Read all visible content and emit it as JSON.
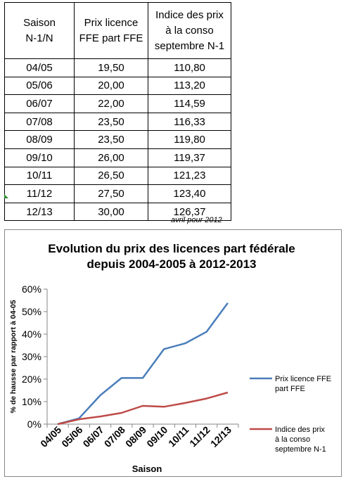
{
  "table": {
    "headers": [
      [
        "Saison",
        "N-1/N"
      ],
      [
        "Prix licence",
        "FFE part FFE"
      ],
      [
        "Indice des prix",
        "à la conso",
        "septembre N-1"
      ]
    ],
    "rows": [
      [
        "04/05",
        "19,50",
        "110,80"
      ],
      [
        "05/06",
        "20,00",
        "113,20"
      ],
      [
        "06/07",
        "22,00",
        "114,59"
      ],
      [
        "07/08",
        "23,50",
        "116,33"
      ],
      [
        "08/09",
        "23,50",
        "119,80"
      ],
      [
        "09/10",
        "26,00",
        "119,37"
      ],
      [
        "10/11",
        "26,50",
        "121,23"
      ],
      [
        "11/12",
        "27,50",
        "123,40"
      ],
      [
        "12/13",
        "30,00",
        "126,37"
      ]
    ]
  },
  "note": "avril pour 2012",
  "chart_data": {
    "type": "line",
    "title": [
      "Evolution du prix des licences part fédérale",
      "depuis 2004-2005 à 2012-2013"
    ],
    "xlabel": "Saison",
    "ylabel": "% de hausse par rapport à 04-05",
    "categories": [
      "04/05",
      "05/06",
      "06/07",
      "07/08",
      "08/09",
      "09/10",
      "10/11",
      "11/12",
      "12/13"
    ],
    "y_ticks": [
      "0%",
      "10%",
      "20%",
      "30%",
      "40%",
      "50%",
      "60%"
    ],
    "ylim": [
      0,
      0.6
    ],
    "legend_position": "right",
    "series": [
      {
        "name": [
          "Prix licence FFE",
          "part FFE"
        ],
        "color": "#4a7ebb",
        "values": [
          0,
          0.0256,
          0.1282,
          0.2051,
          0.2051,
          0.3333,
          0.359,
          0.4103,
          0.5385
        ]
      },
      {
        "name": [
          "Indice des prix",
          "à la conso",
          "septembre N-1"
        ],
        "color": "#be4b48",
        "values": [
          0,
          0.0217,
          0.0342,
          0.0499,
          0.0812,
          0.0773,
          0.0941,
          0.1137,
          0.1405
        ]
      }
    ]
  }
}
